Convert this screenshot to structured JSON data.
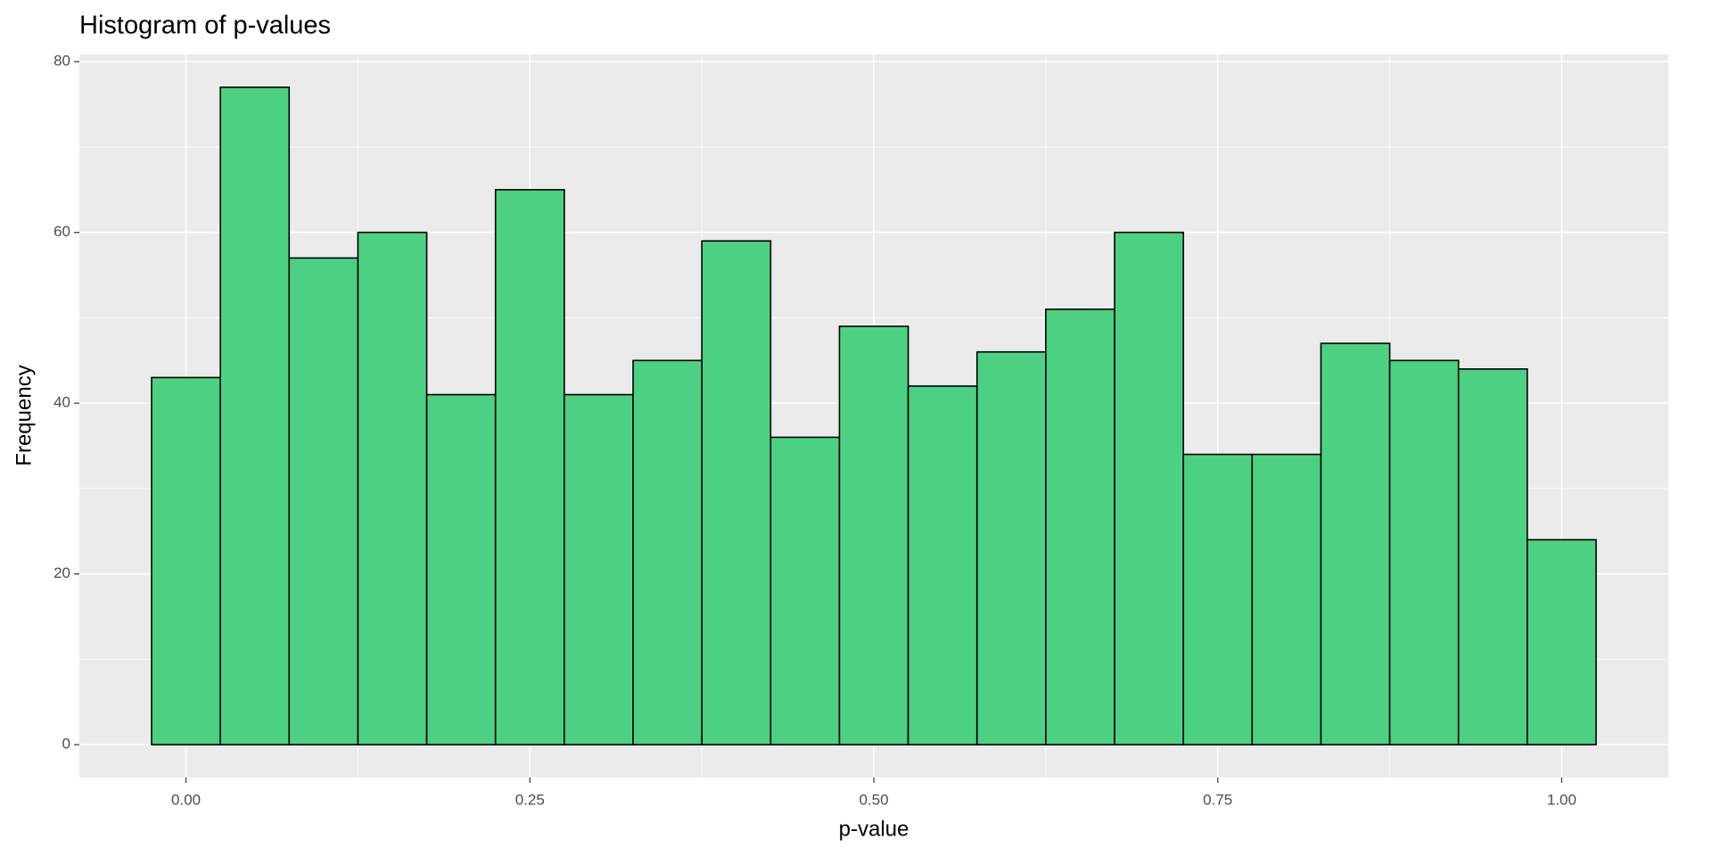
{
  "chart_data": {
    "type": "histogram",
    "title": "Histogram of p-values",
    "x_label": "p-value",
    "y_label": "Frequency",
    "bins": [
      -0.025,
      0.025,
      0.075,
      0.125,
      0.175,
      0.225,
      0.275,
      0.325,
      0.375,
      0.425,
      0.475,
      0.525,
      0.575,
      0.625,
      0.675,
      0.725,
      0.775,
      0.825,
      0.875,
      0.925,
      0.975,
      1.025
    ],
    "values": [
      43,
      77,
      57,
      60,
      41,
      65,
      41,
      45,
      59,
      36,
      49,
      42,
      46,
      51,
      60,
      34,
      34,
      47,
      45,
      44,
      24
    ],
    "color": "#4cd182",
    "edgecolor": "#000000",
    "xlim": [
      -0.0775,
      1.0775
    ],
    "xticks": [
      {
        "value": 0,
        "label": "0.00"
      },
      {
        "value": 0.25,
        "label": "0.25"
      },
      {
        "value": 0.5,
        "label": "0.50"
      },
      {
        "value": 0.75,
        "label": "0.75"
      },
      {
        "value": 1,
        "label": "1.00"
      }
    ],
    "xminorticks": [
      0.125,
      0.375,
      0.625,
      0.875
    ],
    "ylim": [
      -3.85,
      80.85
    ],
    "yticks": [
      0,
      20,
      40,
      60,
      80
    ],
    "yminorticks": [
      10,
      30,
      50,
      70
    ],
    "grid": true
  }
}
